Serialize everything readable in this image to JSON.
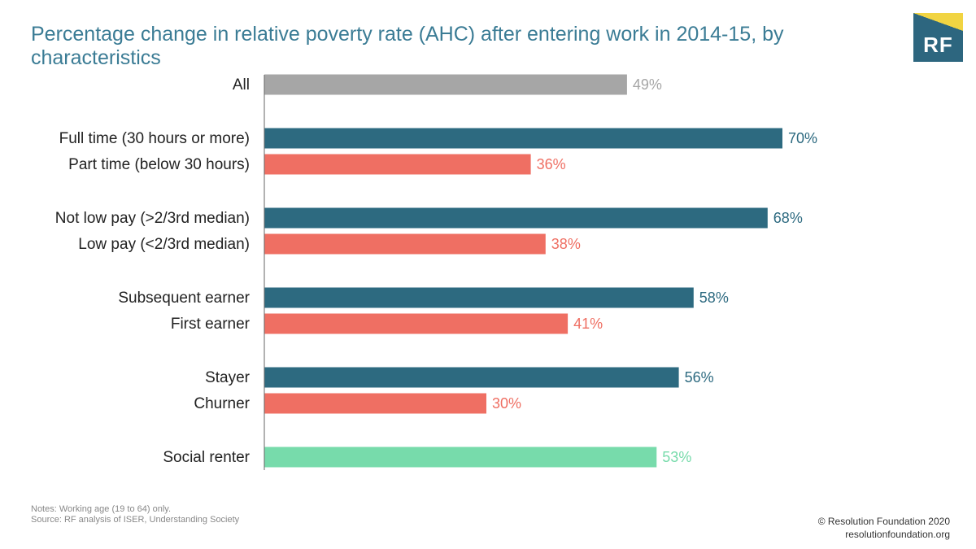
{
  "title": "Percentage change in relative poverty rate (AHC) after entering work in 2014-15, by characteristics",
  "logo": {
    "text": "RF"
  },
  "colors": {
    "all": "#a6a6a6",
    "dark": "#2d6a80",
    "coral": "#ef6f63",
    "mint": "#77dbab",
    "title": "#3b7c95",
    "axis": "#666666"
  },
  "chart_data": {
    "type": "bar",
    "orientation": "horizontal",
    "title": "Percentage change in relative poverty rate (AHC) after entering work in 2014-15, by characteristics",
    "xlim": [
      0,
      100
    ],
    "grid": false,
    "categories": [
      "All",
      "Full time (30 hours or more)",
      "Part time (below 30 hours)",
      "Not low pay (>2/3rd median)",
      "Low pay (<2/3rd median)",
      "Subsequent earner",
      "First earner",
      "Stayer",
      "Churner",
      "Social renter"
    ],
    "values": [
      49,
      70,
      36,
      68,
      38,
      58,
      41,
      56,
      30,
      53
    ],
    "value_labels": [
      "49%",
      "70%",
      "36%",
      "68%",
      "38%",
      "58%",
      "41%",
      "56%",
      "30%",
      "53%"
    ],
    "color_keys": [
      "all",
      "dark",
      "coral",
      "dark",
      "coral",
      "dark",
      "coral",
      "dark",
      "coral",
      "mint"
    ]
  },
  "notes": {
    "line1": "Notes: Working age (19 to 64) only.",
    "line2": "Source: RF analysis of ISER, Understanding Society"
  },
  "footer": {
    "copyright": "© Resolution Foundation 2020",
    "url": "resolutionfoundation.org"
  }
}
